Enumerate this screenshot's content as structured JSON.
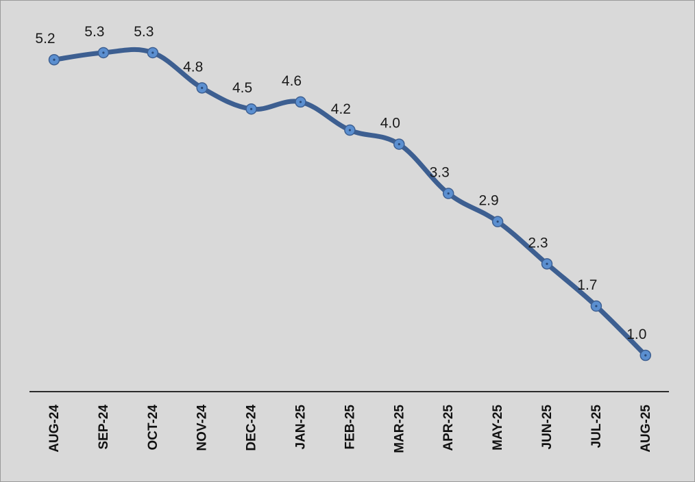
{
  "chart_data": {
    "type": "line",
    "title": "",
    "xlabel": "",
    "ylabel": "",
    "categories": [
      "AUG-24",
      "SEP-24",
      "OCT-24",
      "NOV-24",
      "DEC-24",
      "JAN-25",
      "FEB-25",
      "MAR-25",
      "APR-25",
      "MAY-25",
      "JUN-25",
      "JUL-25",
      "AUG-25"
    ],
    "series": [
      {
        "values": [
          5.2,
          5.3,
          5.3,
          4.8,
          4.5,
          4.6,
          4.2,
          4.0,
          3.3,
          2.9,
          2.3,
          1.7,
          1.0
        ],
        "labels": [
          "5.2",
          "5.3",
          "5.3",
          "4.8",
          "4.5",
          "4.6",
          "4.2",
          "4.0",
          "3.3",
          "2.9",
          "2.3",
          "1.7",
          "1.0"
        ]
      }
    ],
    "ylim": [
      0,
      6
    ],
    "grid": false,
    "legend": "none",
    "line_color": "#3d5f91",
    "marker_color": "#5b8fd0",
    "background_color": "#d9d9d9"
  }
}
